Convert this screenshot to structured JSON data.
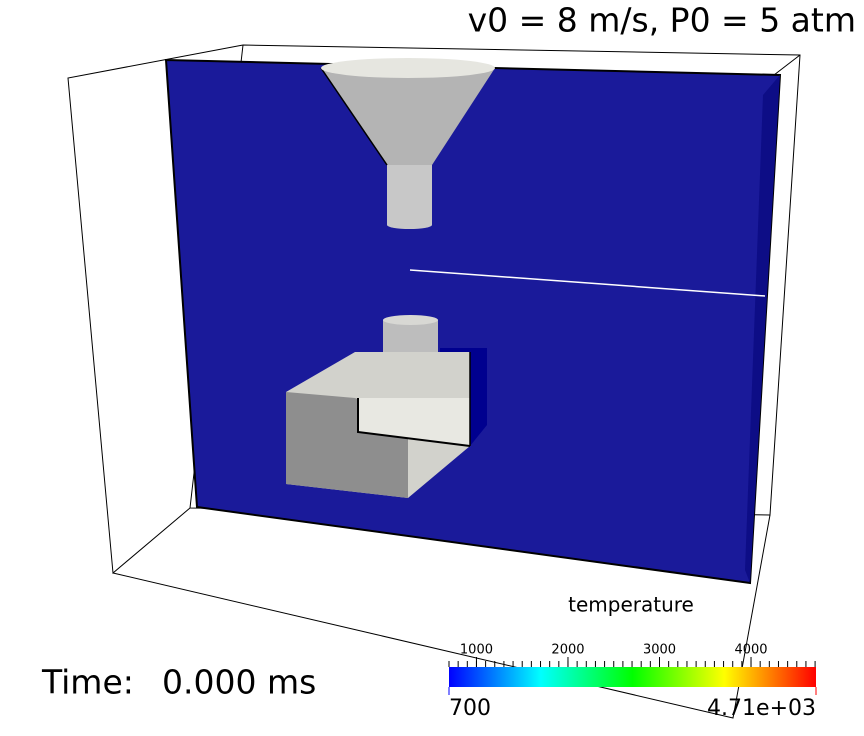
{
  "header": {
    "title": "v0 = 8 m/s, P0 = 5 atm"
  },
  "time": {
    "label": "Time:",
    "value": "0.000 ms"
  },
  "colorbar": {
    "title": "temperature",
    "range": [
      700,
      4710
    ],
    "range_labels": [
      "700",
      "4.71e+03"
    ],
    "ticks": [
      1000,
      2000,
      3000,
      4000
    ]
  }
}
